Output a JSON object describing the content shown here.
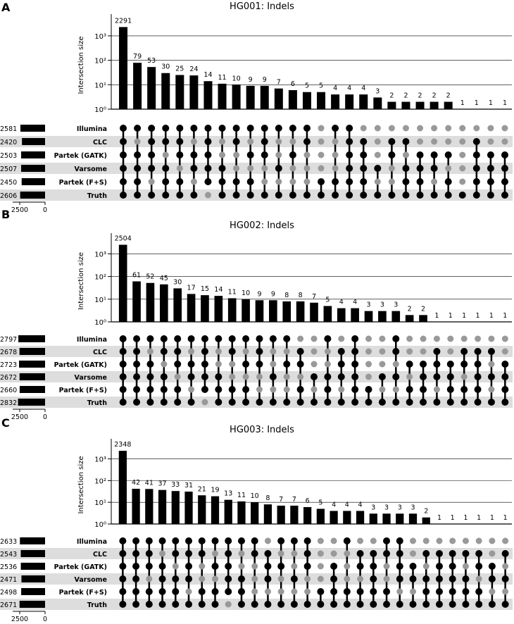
{
  "colors": {
    "bar": "#000000",
    "dot_on": "#000000",
    "dot_off": "#999999",
    "stripe": "#dddddd",
    "grid": "#000000"
  },
  "chart_data": [
    {
      "type": "upset",
      "panel_label": "A",
      "title": "HG001: Indels",
      "ylabel": "Intersection size",
      "yscale": "log",
      "ylim": [
        1,
        2291
      ],
      "yticks": [
        "10⁰",
        "10¹",
        "10²",
        "10³"
      ],
      "set_size_axis": {
        "ticks": [
          "2500",
          "0"
        ]
      },
      "sets": [
        {
          "name": "Illumina",
          "size": 2581
        },
        {
          "name": "CLC",
          "size": 2420
        },
        {
          "name": "Partek (GATK)",
          "size": 2503
        },
        {
          "name": "Varsome",
          "size": 2507
        },
        {
          "name": "Partek (F+S)",
          "size": 2450
        },
        {
          "name": "Truth",
          "size": 2606
        }
      ],
      "intersections": [
        {
          "value": 2291,
          "sets": [
            1,
            1,
            1,
            1,
            1,
            1
          ]
        },
        {
          "value": 79,
          "sets": [
            1,
            0,
            1,
            1,
            1,
            1
          ]
        },
        {
          "value": 53,
          "sets": [
            1,
            1,
            1,
            1,
            0,
            1
          ]
        },
        {
          "value": 30,
          "sets": [
            1,
            1,
            0,
            1,
            1,
            1
          ]
        },
        {
          "value": 25,
          "sets": [
            1,
            1,
            1,
            0,
            1,
            1
          ]
        },
        {
          "value": 24,
          "sets": [
            1,
            0,
            1,
            1,
            0,
            1
          ]
        },
        {
          "value": 14,
          "sets": [
            1,
            1,
            1,
            1,
            1,
            0
          ]
        },
        {
          "value": 11,
          "sets": [
            1,
            0,
            0,
            1,
            1,
            1
          ]
        },
        {
          "value": 10,
          "sets": [
            1,
            1,
            0,
            0,
            1,
            1
          ]
        },
        {
          "value": 9,
          "sets": [
            1,
            0,
            1,
            0,
            1,
            1
          ]
        },
        {
          "value": 9,
          "sets": [
            1,
            1,
            1,
            0,
            0,
            1
          ]
        },
        {
          "value": 7,
          "sets": [
            1,
            0,
            0,
            1,
            0,
            1
          ]
        },
        {
          "value": 6,
          "sets": [
            1,
            0,
            1,
            0,
            0,
            1
          ]
        },
        {
          "value": 5,
          "sets": [
            1,
            1,
            0,
            0,
            0,
            1
          ]
        },
        {
          "value": 5,
          "sets": [
            0,
            0,
            0,
            0,
            1,
            1
          ]
        },
        {
          "value": 4,
          "sets": [
            1,
            0,
            0,
            0,
            1,
            1
          ]
        },
        {
          "value": 4,
          "sets": [
            1,
            1,
            1,
            1,
            1,
            1
          ]
        },
        {
          "value": 4,
          "sets": [
            0,
            1,
            1,
            1,
            1,
            1
          ]
        },
        {
          "value": 3,
          "sets": [
            0,
            0,
            0,
            1,
            0,
            1
          ]
        },
        {
          "value": 2,
          "sets": [
            0,
            1,
            1,
            0,
            0,
            1
          ]
        },
        {
          "value": 2,
          "sets": [
            0,
            1,
            0,
            1,
            1,
            1
          ]
        },
        {
          "value": 2,
          "sets": [
            0,
            0,
            1,
            1,
            1,
            1
          ]
        },
        {
          "value": 2,
          "sets": [
            0,
            0,
            1,
            1,
            0,
            1
          ]
        },
        {
          "value": 2,
          "sets": [
            0,
            0,
            1,
            0,
            1,
            1
          ]
        },
        {
          "value": 1,
          "sets": [
            0,
            0,
            0,
            0,
            0,
            1
          ]
        },
        {
          "value": 1,
          "sets": [
            0,
            1,
            1,
            1,
            1,
            1
          ]
        },
        {
          "value": 1,
          "sets": [
            0,
            0,
            1,
            1,
            1,
            1
          ]
        },
        {
          "value": 1,
          "sets": [
            0,
            0,
            1,
            1,
            1,
            1
          ]
        }
      ]
    },
    {
      "type": "upset",
      "panel_label": "B",
      "title": "HG002: Indels",
      "ylabel": "Intersection size",
      "yscale": "log",
      "ylim": [
        1,
        2504
      ],
      "yticks": [
        "10⁰",
        "10¹",
        "10²",
        "10³"
      ],
      "set_size_axis": {
        "ticks": [
          "2500",
          "0"
        ]
      },
      "sets": [
        {
          "name": "Illumina",
          "size": 2797
        },
        {
          "name": "CLC",
          "size": 2678
        },
        {
          "name": "Partek (GATK)",
          "size": 2723
        },
        {
          "name": "Varsome",
          "size": 2672
        },
        {
          "name": "Partek (F+S)",
          "size": 2660
        },
        {
          "name": "Truth",
          "size": 2832
        }
      ],
      "intersections": [
        {
          "value": 2504,
          "sets": [
            1,
            1,
            1,
            1,
            1,
            1
          ]
        },
        {
          "value": 61,
          "sets": [
            1,
            1,
            1,
            1,
            1,
            1
          ]
        },
        {
          "value": 52,
          "sets": [
            1,
            0,
            1,
            1,
            1,
            1
          ]
        },
        {
          "value": 45,
          "sets": [
            1,
            1,
            0,
            1,
            1,
            1
          ]
        },
        {
          "value": 30,
          "sets": [
            1,
            1,
            1,
            0,
            1,
            1
          ]
        },
        {
          "value": 17,
          "sets": [
            1,
            0,
            1,
            1,
            0,
            1
          ]
        },
        {
          "value": 15,
          "sets": [
            1,
            1,
            1,
            1,
            1,
            0
          ]
        },
        {
          "value": 14,
          "sets": [
            1,
            0,
            0,
            1,
            1,
            1
          ]
        },
        {
          "value": 11,
          "sets": [
            1,
            1,
            0,
            0,
            1,
            1
          ]
        },
        {
          "value": 10,
          "sets": [
            1,
            0,
            1,
            0,
            1,
            1
          ]
        },
        {
          "value": 9,
          "sets": [
            1,
            1,
            1,
            0,
            0,
            1
          ]
        },
        {
          "value": 9,
          "sets": [
            1,
            0,
            0,
            1,
            0,
            1
          ]
        },
        {
          "value": 8,
          "sets": [
            1,
            0,
            1,
            0,
            0,
            1
          ]
        },
        {
          "value": 8,
          "sets": [
            0,
            1,
            1,
            0,
            1,
            1
          ]
        },
        {
          "value": 7,
          "sets": [
            0,
            0,
            0,
            1,
            0,
            1
          ]
        },
        {
          "value": 5,
          "sets": [
            1,
            0,
            0,
            1,
            1,
            1
          ]
        },
        {
          "value": 4,
          "sets": [
            0,
            1,
            1,
            1,
            0,
            1
          ]
        },
        {
          "value": 4,
          "sets": [
            1,
            1,
            1,
            1,
            1,
            1
          ]
        },
        {
          "value": 3,
          "sets": [
            0,
            0,
            0,
            0,
            1,
            1
          ]
        },
        {
          "value": 3,
          "sets": [
            0,
            0,
            0,
            1,
            0,
            1
          ]
        },
        {
          "value": 3,
          "sets": [
            1,
            1,
            0,
            1,
            0,
            1
          ]
        },
        {
          "value": 2,
          "sets": [
            0,
            0,
            1,
            0,
            1,
            1
          ]
        },
        {
          "value": 2,
          "sets": [
            0,
            0,
            1,
            1,
            1,
            1
          ]
        },
        {
          "value": 1,
          "sets": [
            0,
            1,
            1,
            1,
            0,
            1
          ]
        },
        {
          "value": 1,
          "sets": [
            0,
            0,
            1,
            1,
            1,
            1
          ]
        },
        {
          "value": 1,
          "sets": [
            0,
            1,
            1,
            0,
            1,
            1
          ]
        },
        {
          "value": 1,
          "sets": [
            0,
            1,
            1,
            1,
            1,
            1
          ]
        },
        {
          "value": 1,
          "sets": [
            0,
            1,
            0,
            1,
            0,
            1
          ]
        },
        {
          "value": 1,
          "sets": [
            0,
            0,
            1,
            1,
            1,
            1
          ]
        }
      ]
    },
    {
      "type": "upset",
      "panel_label": "C",
      "title": "HG003: Indels",
      "ylabel": "Intersection size",
      "yscale": "log",
      "ylim": [
        1,
        2348
      ],
      "yticks": [
        "10⁰",
        "10¹",
        "10²",
        "10³"
      ],
      "set_size_axis": {
        "ticks": [
          "2500",
          "0"
        ]
      },
      "sets": [
        {
          "name": "Illumina",
          "size": 2633
        },
        {
          "name": "CLC",
          "size": 2543
        },
        {
          "name": "Partek (GATK)",
          "size": 2536
        },
        {
          "name": "Varsome",
          "size": 2471
        },
        {
          "name": "Partek (F+S)",
          "size": 2498
        },
        {
          "name": "Truth",
          "size": 2671
        }
      ],
      "intersections": [
        {
          "value": 2348,
          "sets": [
            1,
            1,
            1,
            1,
            1,
            1
          ]
        },
        {
          "value": 42,
          "sets": [
            1,
            1,
            1,
            1,
            1,
            1
          ]
        },
        {
          "value": 41,
          "sets": [
            1,
            1,
            1,
            0,
            1,
            1
          ]
        },
        {
          "value": 37,
          "sets": [
            1,
            0,
            1,
            1,
            1,
            1
          ]
        },
        {
          "value": 33,
          "sets": [
            1,
            1,
            0,
            1,
            1,
            1
          ]
        },
        {
          "value": 31,
          "sets": [
            1,
            1,
            1,
            1,
            0,
            1
          ]
        },
        {
          "value": 21,
          "sets": [
            1,
            1,
            0,
            0,
            1,
            1
          ]
        },
        {
          "value": 19,
          "sets": [
            1,
            0,
            1,
            0,
            1,
            1
          ]
        },
        {
          "value": 13,
          "sets": [
            1,
            1,
            1,
            1,
            1,
            0
          ]
        },
        {
          "value": 11,
          "sets": [
            1,
            0,
            0,
            1,
            1,
            1
          ]
        },
        {
          "value": 10,
          "sets": [
            1,
            1,
            0,
            0,
            0,
            1
          ]
        },
        {
          "value": 8,
          "sets": [
            0,
            1,
            1,
            1,
            0,
            1
          ]
        },
        {
          "value": 7,
          "sets": [
            1,
            0,
            1,
            0,
            0,
            1
          ]
        },
        {
          "value": 7,
          "sets": [
            1,
            0,
            0,
            1,
            0,
            1
          ]
        },
        {
          "value": 6,
          "sets": [
            1,
            1,
            1,
            0,
            0,
            1
          ]
        },
        {
          "value": 5,
          "sets": [
            0,
            0,
            0,
            0,
            1,
            1
          ]
        },
        {
          "value": 4,
          "sets": [
            0,
            0,
            1,
            1,
            1,
            1
          ]
        },
        {
          "value": 4,
          "sets": [
            1,
            0,
            0,
            0,
            1,
            1
          ]
        },
        {
          "value": 4,
          "sets": [
            0,
            1,
            1,
            0,
            1,
            1
          ]
        },
        {
          "value": 3,
          "sets": [
            0,
            1,
            1,
            1,
            1,
            1
          ]
        },
        {
          "value": 3,
          "sets": [
            1,
            1,
            0,
            0,
            1,
            1
          ]
        },
        {
          "value": 3,
          "sets": [
            1,
            1,
            1,
            1,
            0,
            1
          ]
        },
        {
          "value": 3,
          "sets": [
            0,
            0,
            1,
            1,
            0,
            1
          ]
        },
        {
          "value": 2,
          "sets": [
            0,
            1,
            0,
            1,
            1,
            1
          ]
        },
        {
          "value": 1,
          "sets": [
            0,
            1,
            1,
            1,
            1,
            1
          ]
        },
        {
          "value": 1,
          "sets": [
            0,
            1,
            1,
            1,
            1,
            1
          ]
        },
        {
          "value": 1,
          "sets": [
            0,
            1,
            0,
            1,
            1,
            1
          ]
        },
        {
          "value": 1,
          "sets": [
            0,
            1,
            1,
            0,
            1,
            1
          ]
        },
        {
          "value": 1,
          "sets": [
            0,
            0,
            1,
            1,
            0,
            1
          ]
        },
        {
          "value": 1,
          "sets": [
            0,
            1,
            0,
            1,
            0,
            1
          ]
        }
      ]
    }
  ]
}
